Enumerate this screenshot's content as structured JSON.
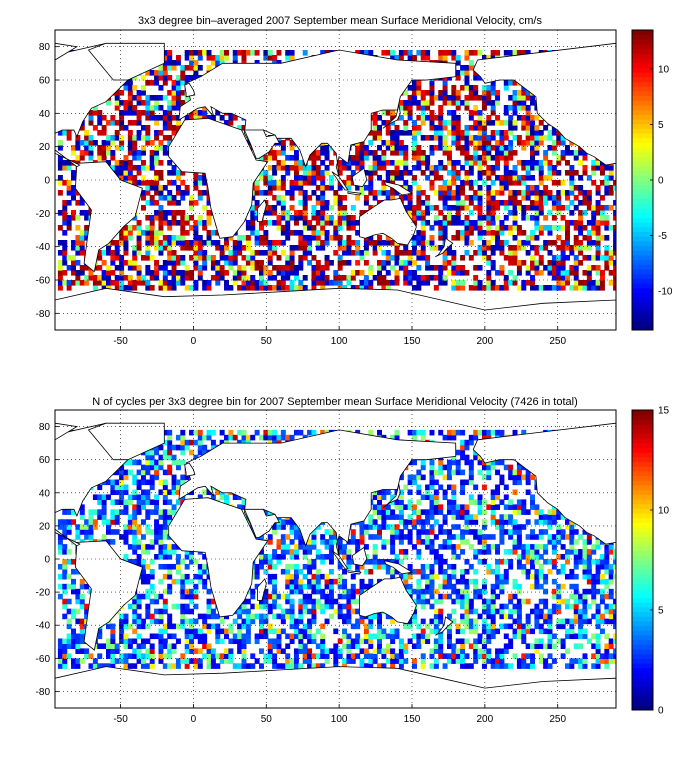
{
  "panels": [
    {
      "title": "3x3 degree bin–averaged 2007 September mean Surface Meridional Velocity, cm/s",
      "colorbar": {
        "range": [
          -13.5,
          13.5
        ],
        "ticks": [
          -10,
          -5,
          0,
          5,
          10
        ],
        "tick_labels": [
          "-10",
          "-5",
          "0",
          "5",
          "10"
        ]
      }
    },
    {
      "title": "N of cycles per 3x3 degree bin for 2007 September mean Surface Meridional Velocity (7426 in total)",
      "colorbar": {
        "range": [
          0,
          15
        ],
        "ticks": [
          0,
          5,
          10,
          15
        ],
        "tick_labels": [
          "0",
          "5",
          "10",
          "15"
        ]
      }
    }
  ],
  "map_axes": {
    "x_range": [
      -95,
      290
    ],
    "y_range": [
      -90,
      90
    ],
    "x_ticks": [
      -50,
      0,
      50,
      100,
      150,
      200,
      250
    ],
    "x_tick_labels": [
      "-50",
      "0",
      "50",
      "100",
      "150",
      "200",
      "250"
    ],
    "y_ticks": [
      -80,
      -60,
      -40,
      -20,
      0,
      20,
      40,
      60,
      80
    ],
    "y_tick_labels": [
      "-80",
      "-60",
      "-40",
      "-20",
      "0",
      "20",
      "40",
      "60",
      "80"
    ],
    "grid": "dotted",
    "colormap": "jet"
  },
  "colors": {
    "land_fill": "#ffffff",
    "coast": "#000000",
    "grid": "#000000"
  }
}
